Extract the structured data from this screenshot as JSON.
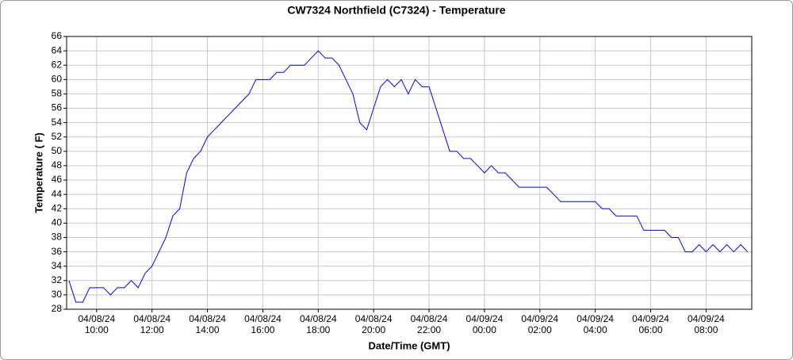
{
  "chart_data": {
    "type": "line",
    "title": "CW7324 Northfield (C7324) - Temperature",
    "x_label": "Date/Time (GMT)",
    "y_label": "Temperature ( F)",
    "color": "#0000ff",
    "grid": true,
    "xlim": [
      "04/08/24 08:55",
      "04/09/24 09:39"
    ],
    "xticks": [
      {
        "value": "04/08/24 10:00",
        "label": [
          "04/08/24",
          "10:00"
        ]
      },
      {
        "value": "04/08/24 12:00",
        "label": [
          "04/08/24",
          "12:00"
        ]
      },
      {
        "value": "04/08/24 14:00",
        "label": [
          "04/08/24",
          "14:00"
        ]
      },
      {
        "value": "04/08/24 16:00",
        "label": [
          "04/08/24",
          "16:00"
        ]
      },
      {
        "value": "04/08/24 18:00",
        "label": [
          "04/08/24",
          "18:00"
        ]
      },
      {
        "value": "04/08/24 20:00",
        "label": [
          "04/08/24",
          "20:00"
        ]
      },
      {
        "value": "04/08/24 22:00",
        "label": [
          "04/08/24",
          "22:00"
        ]
      },
      {
        "value": "04/09/24 00:00",
        "label": [
          "04/09/24",
          "00:00"
        ]
      },
      {
        "value": "04/09/24 02:00",
        "label": [
          "04/09/24",
          "02:00"
        ]
      },
      {
        "value": "04/09/24 04:00",
        "label": [
          "04/09/24",
          "04:00"
        ]
      },
      {
        "value": "04/09/24 06:00",
        "label": [
          "04/09/24",
          "06:00"
        ]
      },
      {
        "value": "04/09/24 08:00",
        "label": [
          "04/09/24",
          "08:00"
        ]
      }
    ],
    "ylim": [
      28,
      66
    ],
    "yticks": [
      28,
      30,
      32,
      34,
      36,
      38,
      40,
      42,
      44,
      46,
      48,
      50,
      52,
      54,
      56,
      58,
      60,
      62,
      64,
      66
    ],
    "x": [
      "04/08/24 09:00",
      "04/08/24 09:15",
      "04/08/24 09:30",
      "04/08/24 09:45",
      "04/08/24 10:00",
      "04/08/24 10:15",
      "04/08/24 10:30",
      "04/08/24 10:45",
      "04/08/24 11:00",
      "04/08/24 11:15",
      "04/08/24 11:30",
      "04/08/24 11:45",
      "04/08/24 12:00",
      "04/08/24 12:15",
      "04/08/24 12:30",
      "04/08/24 12:45",
      "04/08/24 13:00",
      "04/08/24 13:15",
      "04/08/24 13:30",
      "04/08/24 13:45",
      "04/08/24 14:00",
      "04/08/24 14:15",
      "04/08/24 14:30",
      "04/08/24 14:45",
      "04/08/24 15:00",
      "04/08/24 15:15",
      "04/08/24 15:30",
      "04/08/24 15:45",
      "04/08/24 16:00",
      "04/08/24 16:15",
      "04/08/24 16:30",
      "04/08/24 16:45",
      "04/08/24 17:00",
      "04/08/24 17:15",
      "04/08/24 17:30",
      "04/08/24 17:45",
      "04/08/24 18:00",
      "04/08/24 18:15",
      "04/08/24 18:30",
      "04/08/24 18:45",
      "04/08/24 19:00",
      "04/08/24 19:15",
      "04/08/24 19:30",
      "04/08/24 19:45",
      "04/08/24 20:00",
      "04/08/24 20:15",
      "04/08/24 20:30",
      "04/08/24 20:45",
      "04/08/24 21:00",
      "04/08/24 21:15",
      "04/08/24 21:30",
      "04/08/24 21:45",
      "04/08/24 22:00",
      "04/08/24 22:15",
      "04/08/24 22:30",
      "04/08/24 22:45",
      "04/08/24 23:00",
      "04/08/24 23:15",
      "04/08/24 23:30",
      "04/08/24 23:45",
      "04/09/24 00:00",
      "04/09/24 00:15",
      "04/09/24 00:30",
      "04/09/24 00:45",
      "04/09/24 01:00",
      "04/09/24 01:15",
      "04/09/24 01:30",
      "04/09/24 01:45",
      "04/09/24 02:00",
      "04/09/24 02:15",
      "04/09/24 02:30",
      "04/09/24 02:45",
      "04/09/24 03:00",
      "04/09/24 03:15",
      "04/09/24 03:30",
      "04/09/24 03:45",
      "04/09/24 04:00",
      "04/09/24 04:15",
      "04/09/24 04:30",
      "04/09/24 04:45",
      "04/09/24 05:00",
      "04/09/24 05:15",
      "04/09/24 05:30",
      "04/09/24 05:45",
      "04/09/24 06:00",
      "04/09/24 06:15",
      "04/09/24 06:30",
      "04/09/24 06:45",
      "04/09/24 07:00",
      "04/09/24 07:15",
      "04/09/24 07:30",
      "04/09/24 07:45",
      "04/09/24 08:00",
      "04/09/24 08:15",
      "04/09/24 08:30",
      "04/09/24 08:45",
      "04/09/24 09:00",
      "04/09/24 09:15",
      "04/09/24 09:30"
    ],
    "values": [
      32,
      29,
      29,
      31,
      31,
      31,
      30,
      31,
      31,
      32,
      31,
      33,
      34,
      36,
      38,
      41,
      42,
      47,
      49,
      50,
      52,
      53,
      54,
      55,
      56,
      57,
      58,
      60,
      60,
      60,
      61,
      61,
      62,
      62,
      62,
      63,
      64,
      63,
      63,
      62,
      60,
      58,
      54,
      53,
      56,
      59,
      60,
      59,
      60,
      58,
      60,
      59,
      59,
      56,
      53,
      50,
      50,
      49,
      49,
      48,
      47,
      48,
      47,
      47,
      46,
      45,
      45,
      45,
      45,
      45,
      44,
      43,
      43,
      43,
      43,
      43,
      43,
      42,
      42,
      41,
      41,
      41,
      41,
      39,
      39,
      39,
      39,
      38,
      38,
      36,
      36,
      37,
      36,
      37,
      36,
      37,
      36,
      37,
      36
    ]
  }
}
